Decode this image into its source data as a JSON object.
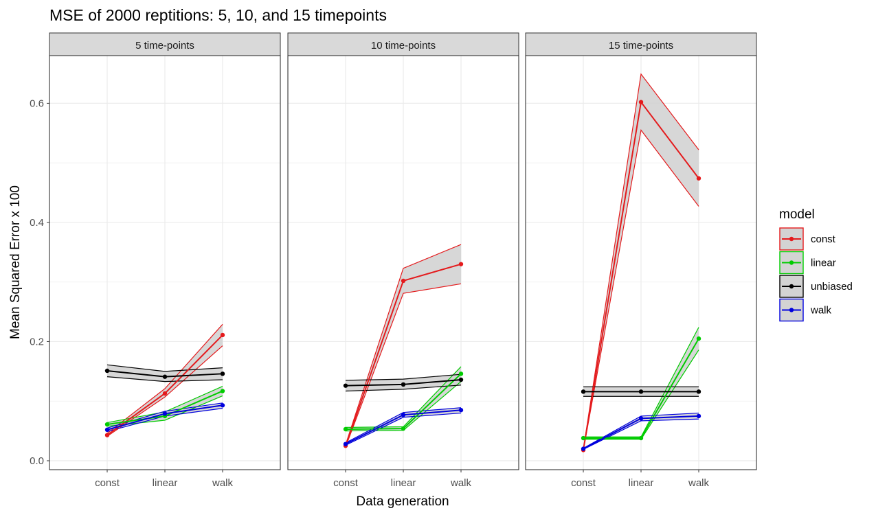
{
  "chart_data": {
    "type": "line",
    "title": "MSE of 2000 reptitions: 5, 10, and 15 timepoints",
    "xlabel": "Data generation",
    "ylabel": "Mean Squared Error x 100",
    "categories": [
      "const",
      "linear",
      "walk"
    ],
    "ylim": [
      -0.015,
      0.68
    ],
    "yticks": [
      0.0,
      0.2,
      0.4,
      0.6
    ],
    "y_tick_labels": [
      "0.0",
      "0.2",
      "0.4",
      "0.6"
    ],
    "grid": true,
    "legend": {
      "title": "model",
      "position": "right",
      "entries": [
        "const",
        "linear",
        "unbiased",
        "walk"
      ]
    },
    "colors": {
      "const": "#e41a1c",
      "linear": "#00cc00",
      "unbiased": "#000000",
      "walk": "#0000dd",
      "ribbon": "#d3d3d3"
    },
    "panels": [
      {
        "label": "5 time-points",
        "series": [
          {
            "name": "const",
            "values": [
              0.043,
              0.113,
              0.211
            ],
            "lower": [
              0.041,
              0.107,
              0.193
            ],
            "upper": [
              0.046,
              0.121,
              0.229
            ]
          },
          {
            "name": "linear",
            "values": [
              0.061,
              0.075,
              0.117
            ],
            "lower": [
              0.058,
              0.068,
              0.109
            ],
            "upper": [
              0.064,
              0.082,
              0.125
            ]
          },
          {
            "name": "unbiased",
            "values": [
              0.151,
              0.141,
              0.146
            ],
            "lower": [
              0.141,
              0.133,
              0.136
            ],
            "upper": [
              0.161,
              0.15,
              0.156
            ]
          },
          {
            "name": "walk",
            "values": [
              0.052,
              0.079,
              0.093
            ],
            "lower": [
              0.049,
              0.075,
              0.088
            ],
            "upper": [
              0.055,
              0.083,
              0.097
            ]
          }
        ]
      },
      {
        "label": "10 time-points",
        "series": [
          {
            "name": "const",
            "values": [
              0.025,
              0.302,
              0.33
            ],
            "lower": [
              0.023,
              0.281,
              0.297
            ],
            "upper": [
              0.027,
              0.323,
              0.363
            ]
          },
          {
            "name": "linear",
            "values": [
              0.053,
              0.054,
              0.146
            ],
            "lower": [
              0.05,
              0.051,
              0.133
            ],
            "upper": [
              0.056,
              0.057,
              0.158
            ]
          },
          {
            "name": "unbiased",
            "values": [
              0.126,
              0.128,
              0.136
            ],
            "lower": [
              0.117,
              0.12,
              0.127
            ],
            "upper": [
              0.135,
              0.137,
              0.145
            ]
          },
          {
            "name": "walk",
            "values": [
              0.028,
              0.077,
              0.085
            ],
            "lower": [
              0.026,
              0.073,
              0.08
            ],
            "upper": [
              0.03,
              0.081,
              0.089
            ]
          }
        ]
      },
      {
        "label": "15 time-points",
        "series": [
          {
            "name": "const",
            "values": [
              0.018,
              0.602,
              0.474
            ],
            "lower": [
              0.017,
              0.555,
              0.427
            ],
            "upper": [
              0.019,
              0.649,
              0.522
            ]
          },
          {
            "name": "linear",
            "values": [
              0.038,
              0.038,
              0.205
            ],
            "lower": [
              0.036,
              0.036,
              0.186
            ],
            "upper": [
              0.04,
              0.04,
              0.224
            ]
          },
          {
            "name": "unbiased",
            "values": [
              0.116,
              0.116,
              0.116
            ],
            "lower": [
              0.108,
              0.108,
              0.108
            ],
            "upper": [
              0.124,
              0.124,
              0.124
            ]
          },
          {
            "name": "walk",
            "values": [
              0.02,
              0.071,
              0.075
            ],
            "lower": [
              0.019,
              0.067,
              0.07
            ],
            "upper": [
              0.021,
              0.075,
              0.08
            ]
          }
        ]
      }
    ]
  }
}
